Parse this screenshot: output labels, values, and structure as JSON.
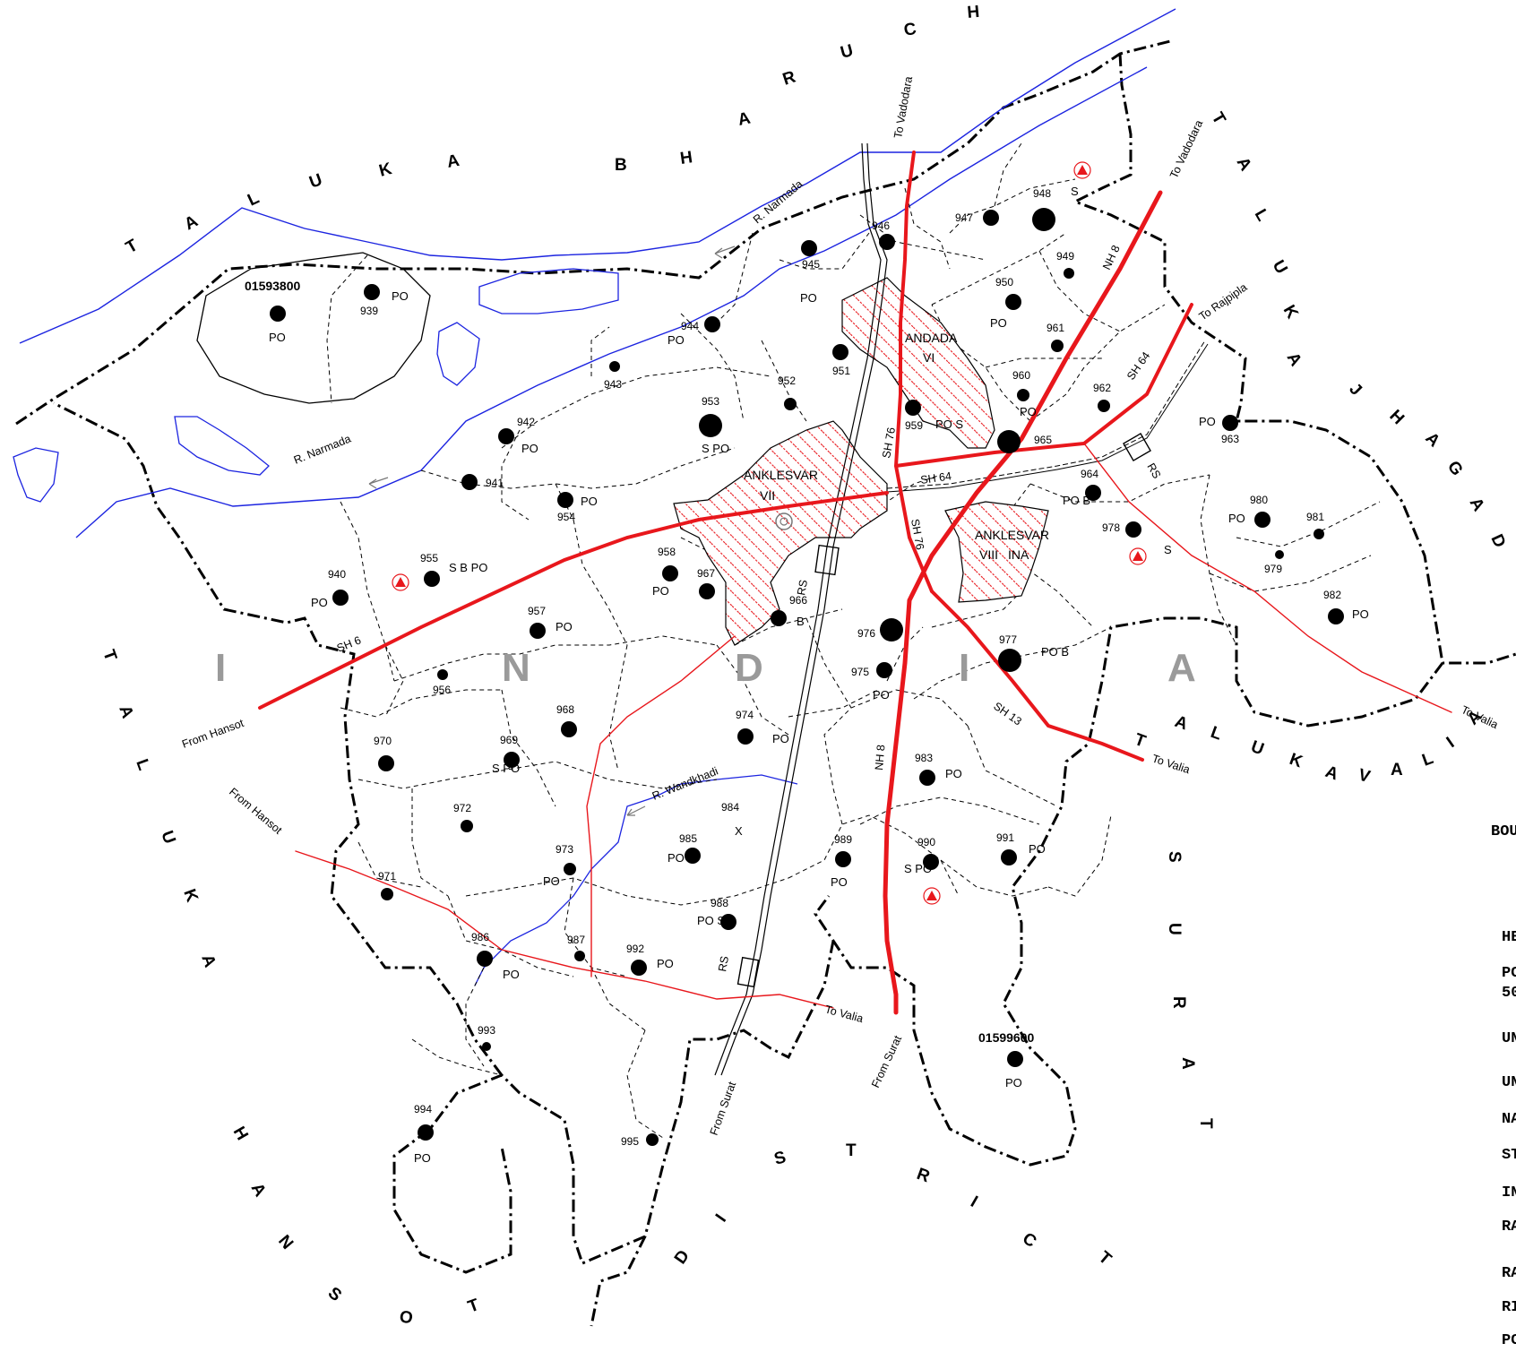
{
  "country_letters": [
    "I",
    "N",
    "D",
    "I",
    "A"
  ],
  "district_labels": {
    "top": [
      "T",
      "A",
      "L",
      "U",
      "K",
      "A",
      "B",
      "H",
      "A",
      "R",
      "U",
      "C",
      "H"
    ],
    "right_top": [
      "T",
      "A",
      "L",
      "U",
      "K",
      "A",
      "J",
      "H",
      "A",
      "G",
      "A",
      "D"
    ],
    "right_low": [
      "T",
      "A",
      "L",
      "U",
      "K",
      "A",
      "V",
      "A",
      "L",
      "I",
      "A"
    ],
    "left": [
      "T",
      "A",
      "L",
      "U",
      "K",
      "A"
    ],
    "left_low": [
      "H",
      "A",
      "N",
      "S",
      "O",
      "T"
    ],
    "bottom": [
      "D",
      "I",
      "S",
      "T",
      "R",
      "I",
      "C",
      "T"
    ],
    "bottom_right": [
      "S",
      "U",
      "R",
      "A",
      "T"
    ]
  },
  "towns": [
    {
      "name": "ANKLESVAR",
      "sub": "VII"
    },
    {
      "name": "ANDADA",
      "sub": "VI"
    },
    {
      "name": "ANKLESVAR",
      "sub": "VIII",
      "sub2": "INA"
    }
  ],
  "codes": [
    "01593800",
    "01599600"
  ],
  "rivers": [
    "R. Narmada",
    "R. Narmada",
    "R. Wandkhadi"
  ],
  "roads": [
    "SH 76",
    "SH 76",
    "SH 64",
    "SH 64",
    "SH 6",
    "SH 13",
    "NH 8",
    "NH 8",
    "RS",
    "RS",
    "RS"
  ],
  "directions": [
    "To Vadodara",
    "To Vadodara",
    "To Rajpipla",
    "From Hansot",
    "From Hansot",
    "To Valia",
    "To Valia",
    "To Valia",
    "From Surat",
    "From Surat"
  ],
  "villages": [
    {
      "no": "939",
      "fac": "PO"
    },
    {
      "no": "940",
      "fac": "PO"
    },
    {
      "no": "941",
      "fac": ""
    },
    {
      "no": "942",
      "fac": "PO"
    },
    {
      "no": "943",
      "fac": ""
    },
    {
      "no": "944",
      "fac": "PO"
    },
    {
      "no": "945",
      "fac": "PO"
    },
    {
      "no": "946",
      "fac": ""
    },
    {
      "no": "947",
      "fac": ""
    },
    {
      "no": "948",
      "fac": "S"
    },
    {
      "no": "949",
      "fac": ""
    },
    {
      "no": "950",
      "fac": "PO"
    },
    {
      "no": "951",
      "fac": ""
    },
    {
      "no": "952",
      "fac": ""
    },
    {
      "no": "953",
      "fac": "S PO"
    },
    {
      "no": "954",
      "fac": "PO"
    },
    {
      "no": "955",
      "fac": "S B PO"
    },
    {
      "no": "956",
      "fac": ""
    },
    {
      "no": "957",
      "fac": "PO"
    },
    {
      "no": "958",
      "fac": "PO"
    },
    {
      "no": "959",
      "fac": "PO S"
    },
    {
      "no": "960",
      "fac": "PO"
    },
    {
      "no": "961",
      "fac": ""
    },
    {
      "no": "962",
      "fac": ""
    },
    {
      "no": "963",
      "fac": "PO"
    },
    {
      "no": "964",
      "fac": "PO B"
    },
    {
      "no": "965",
      "fac": ""
    },
    {
      "no": "966",
      "fac": "B"
    },
    {
      "no": "967",
      "fac": ""
    },
    {
      "no": "968",
      "fac": ""
    },
    {
      "no": "969",
      "fac": "S PO"
    },
    {
      "no": "970",
      "fac": ""
    },
    {
      "no": "971",
      "fac": ""
    },
    {
      "no": "972",
      "fac": ""
    },
    {
      "no": "973",
      "fac": "PO"
    },
    {
      "no": "974",
      "fac": "PO"
    },
    {
      "no": "975",
      "fac": "PO"
    },
    {
      "no": "976",
      "fac": ""
    },
    {
      "no": "977",
      "fac": "PO B"
    },
    {
      "no": "978",
      "fac": "S"
    },
    {
      "no": "979",
      "fac": ""
    },
    {
      "no": "980",
      "fac": "PO"
    },
    {
      "no": "981",
      "fac": ""
    },
    {
      "no": "982",
      "fac": "PO"
    },
    {
      "no": "983",
      "fac": "PO"
    },
    {
      "no": "984",
      "fac": "X"
    },
    {
      "no": "985",
      "fac": "PO"
    },
    {
      "no": "986",
      "fac": "PO"
    },
    {
      "no": "987",
      "fac": ""
    },
    {
      "no": "988",
      "fac": "PO S B"
    },
    {
      "no": "989",
      "fac": "PO"
    },
    {
      "no": "990",
      "fac": "S PO"
    },
    {
      "no": "991",
      "fac": "PO"
    },
    {
      "no": "992",
      "fac": "PO"
    },
    {
      "no": "993",
      "fac": ""
    },
    {
      "no": "994",
      "fac": "PO"
    },
    {
      "no": "995",
      "fac": ""
    }
  ],
  "legend_fragments": [
    "BOU",
    "HE",
    "PC",
    "50",
    "UN",
    "UN",
    "NA",
    "ST",
    "IN",
    "RA",
    "RA",
    "RI",
    "PC"
  ],
  "colors": {
    "road": "#e8171c",
    "river": "#1c24e0",
    "boundary": "#000000",
    "urban_hatch": "#e8171c",
    "country_text": "#9a9a9a"
  }
}
